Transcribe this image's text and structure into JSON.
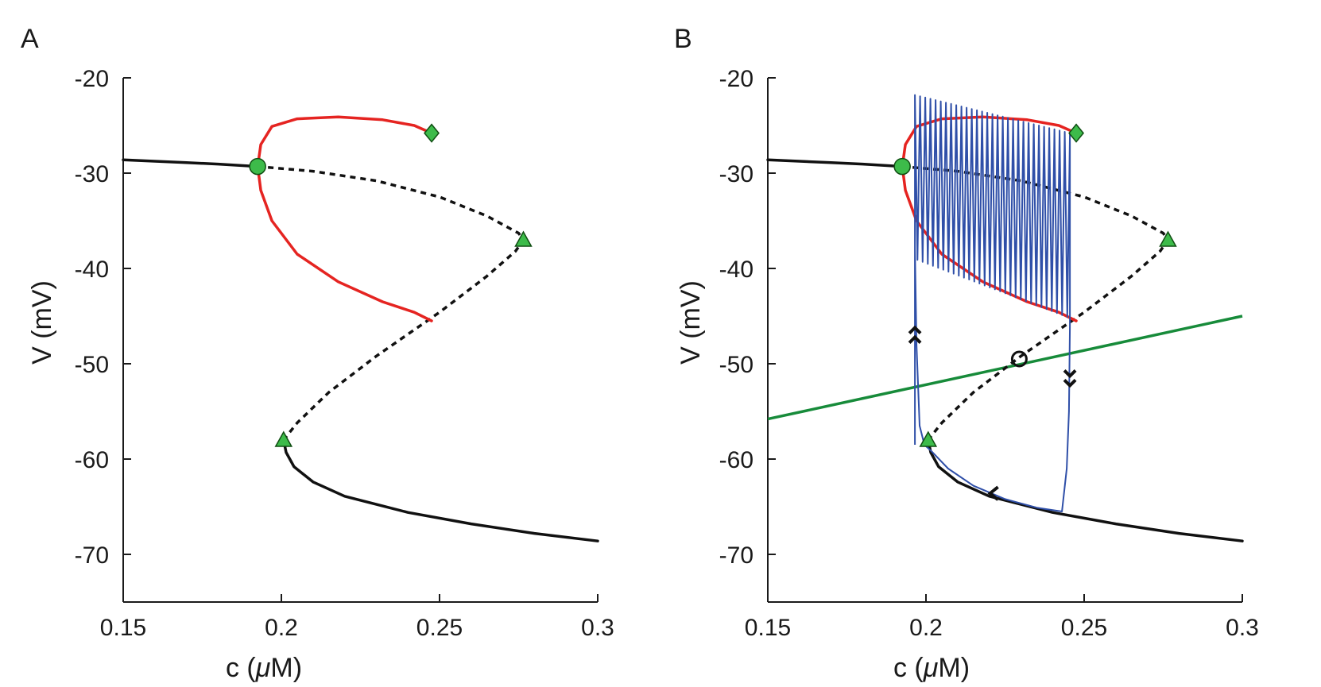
{
  "chart_data": [
    {
      "panel_label": "A",
      "type": "line",
      "xlabel_prefix": "c (",
      "xlabel_mu": "μ",
      "xlabel_suffix": "M)",
      "ylabel": "V (mV)",
      "xlim": [
        0.15,
        0.3
      ],
      "ylim": [
        -75,
        -20
      ],
      "xticks": [
        0.15,
        0.2,
        0.25,
        0.3
      ],
      "xtick_labels": [
        "0.15",
        "0.2",
        "0.25",
        "0.3"
      ],
      "yticks": [
        -20,
        -30,
        -40,
        -50,
        -60,
        -70
      ],
      "ytick_labels": [
        "-20",
        "-30",
        "-40",
        "-50",
        "-60",
        "-70"
      ],
      "series": [
        {
          "name": "stable upper branch",
          "color": "#111111",
          "style": "solid",
          "x": [
            0.15,
            0.16,
            0.17,
            0.18,
            0.1925
          ],
          "y": [
            -28.6,
            -28.75,
            -28.9,
            -29.05,
            -29.3
          ]
        },
        {
          "name": "unstable middle branch",
          "color": "#111111",
          "style": "dashed",
          "x": [
            0.1925,
            0.21,
            0.23,
            0.25,
            0.265,
            0.275,
            0.2765,
            0.274,
            0.265,
            0.25,
            0.23,
            0.215,
            0.205,
            0.2007
          ],
          "y": [
            -29.3,
            -29.8,
            -30.8,
            -32.5,
            -34.5,
            -36.3,
            -37.0,
            -38.2,
            -40.8,
            -44.6,
            -49.2,
            -53.0,
            -56.2,
            -58.0
          ]
        },
        {
          "name": "stable lower branch",
          "color": "#111111",
          "style": "solid",
          "x": [
            0.2007,
            0.2015,
            0.204,
            0.21,
            0.22,
            0.24,
            0.26,
            0.28,
            0.3
          ],
          "y": [
            -58.0,
            -59.3,
            -60.8,
            -62.4,
            -63.9,
            -65.6,
            -66.8,
            -67.8,
            -68.6
          ]
        },
        {
          "name": "periodic orbit max",
          "color": "#e52421",
          "style": "solid",
          "x": [
            0.1925,
            0.1935,
            0.197,
            0.205,
            0.218,
            0.232,
            0.242,
            0.2475
          ],
          "y": [
            -29.3,
            -27.0,
            -25.1,
            -24.3,
            -24.1,
            -24.4,
            -25.0,
            -25.8
          ]
        },
        {
          "name": "periodic orbit min",
          "color": "#e52421",
          "style": "solid",
          "x": [
            0.1925,
            0.1935,
            0.197,
            0.205,
            0.218,
            0.232,
            0.242,
            0.2475
          ],
          "y": [
            -29.3,
            -31.8,
            -35.0,
            -38.5,
            -41.4,
            -43.5,
            -44.6,
            -45.5
          ]
        }
      ],
      "markers": [
        {
          "name": "hopf-bifurcation",
          "shape": "circle",
          "x": 0.1925,
          "y": -29.3,
          "color": "#3dbb4a"
        },
        {
          "name": "orbit-end",
          "shape": "diamond",
          "x": 0.2475,
          "y": -25.8,
          "color": "#3dbb4a"
        },
        {
          "name": "saddle-node-upper",
          "shape": "triangle",
          "x": 0.2765,
          "y": -37.0,
          "color": "#3dbb4a"
        },
        {
          "name": "saddle-node-lower",
          "shape": "triangle",
          "x": 0.2007,
          "y": -58.0,
          "color": "#3dbb4a"
        }
      ],
      "nullcline": null,
      "trajectory": null
    },
    {
      "panel_label": "B",
      "type": "line",
      "xlabel_prefix": "c (",
      "xlabel_mu": "μ",
      "xlabel_suffix": "M)",
      "ylabel": "V (mV)",
      "xlim": [
        0.15,
        0.3
      ],
      "ylim": [
        -75,
        -20
      ],
      "xticks": [
        0.15,
        0.2,
        0.25,
        0.3
      ],
      "xtick_labels": [
        "0.15",
        "0.2",
        "0.25",
        "0.3"
      ],
      "yticks": [
        -20,
        -30,
        -40,
        -50,
        -60,
        -70
      ],
      "ytick_labels": [
        "-20",
        "-30",
        "-40",
        "-50",
        "-60",
        "-70"
      ],
      "series": [
        {
          "name": "stable upper branch",
          "color": "#111111",
          "style": "solid",
          "x": [
            0.15,
            0.16,
            0.17,
            0.18,
            0.1925
          ],
          "y": [
            -28.6,
            -28.75,
            -28.9,
            -29.05,
            -29.3
          ]
        },
        {
          "name": "unstable middle branch",
          "color": "#111111",
          "style": "dashed",
          "x": [
            0.1925,
            0.21,
            0.23,
            0.25,
            0.265,
            0.275,
            0.2765,
            0.274,
            0.265,
            0.25,
            0.23,
            0.215,
            0.205,
            0.2007
          ],
          "y": [
            -29.3,
            -29.8,
            -30.8,
            -32.5,
            -34.5,
            -36.3,
            -37.0,
            -38.2,
            -40.8,
            -44.6,
            -49.2,
            -53.0,
            -56.2,
            -58.0
          ]
        },
        {
          "name": "stable lower branch",
          "color": "#111111",
          "style": "solid",
          "x": [
            0.2007,
            0.2015,
            0.204,
            0.21,
            0.22,
            0.24,
            0.26,
            0.28,
            0.3
          ],
          "y": [
            -58.0,
            -59.3,
            -60.8,
            -62.4,
            -63.9,
            -65.6,
            -66.8,
            -67.8,
            -68.6
          ]
        },
        {
          "name": "periodic orbit max",
          "color": "#e52421",
          "style": "solid",
          "x": [
            0.1925,
            0.1935,
            0.197,
            0.205,
            0.218,
            0.232,
            0.242,
            0.2475
          ],
          "y": [
            -29.3,
            -27.0,
            -25.1,
            -24.3,
            -24.1,
            -24.4,
            -25.0,
            -25.8
          ]
        },
        {
          "name": "periodic orbit min",
          "color": "#e52421",
          "style": "solid",
          "x": [
            0.1925,
            0.1935,
            0.197,
            0.205,
            0.218,
            0.232,
            0.242,
            0.2475
          ],
          "y": [
            -29.3,
            -31.8,
            -35.0,
            -38.5,
            -41.4,
            -43.5,
            -44.6,
            -45.5
          ]
        }
      ],
      "markers": [
        {
          "name": "hopf-bifurcation",
          "shape": "circle",
          "x": 0.1925,
          "y": -29.3,
          "color": "#3dbb4a"
        },
        {
          "name": "orbit-end",
          "shape": "diamond",
          "x": 0.2475,
          "y": -25.8,
          "color": "#3dbb4a"
        },
        {
          "name": "saddle-node-upper",
          "shape": "triangle",
          "x": 0.2765,
          "y": -37.0,
          "color": "#3dbb4a"
        },
        {
          "name": "saddle-node-lower",
          "shape": "triangle",
          "x": 0.2007,
          "y": -58.0,
          "color": "#3dbb4a"
        },
        {
          "name": "equilibrium",
          "shape": "open-circle",
          "x": 0.2295,
          "y": -49.5,
          "color": "#111111"
        }
      ],
      "nullcline": {
        "name": "c-nullcline",
        "color": "#178b3a",
        "x": [
          0.15,
          0.3
        ],
        "y": [
          -55.8,
          -45.0
        ]
      },
      "trajectory": {
        "name": "burst trajectory",
        "color": "#2f4fa8",
        "c_start": 0.1965,
        "c_end": 0.2455,
        "n_spikes": 30,
        "spike_top_start": -21.8,
        "spike_top_end": -25.8,
        "trough_start": -39.0,
        "trough_end": -45.2,
        "return_path_x": [
          0.2455,
          0.2455,
          0.2452,
          0.2445,
          0.243,
          0.235,
          0.225,
          0.215,
          0.207,
          0.2015,
          0.1995,
          0.198,
          0.197,
          0.1965
        ],
        "return_path_y": [
          -25.8,
          -46.0,
          -55.0,
          -61.0,
          -65.5,
          -65.1,
          -64.2,
          -62.8,
          -61.0,
          -59.1,
          -58.5,
          -56.5,
          -48.0,
          -38.0
        ]
      },
      "arrows": [
        {
          "name": "up-arrow",
          "x": 0.1965,
          "y": -47.3,
          "direction": "up"
        },
        {
          "name": "down-arrow",
          "x": 0.2455,
          "y": -51.2,
          "direction": "down"
        },
        {
          "name": "left-arrow",
          "x": 0.2215,
          "y": -63.6,
          "direction": "left"
        }
      ]
    }
  ]
}
